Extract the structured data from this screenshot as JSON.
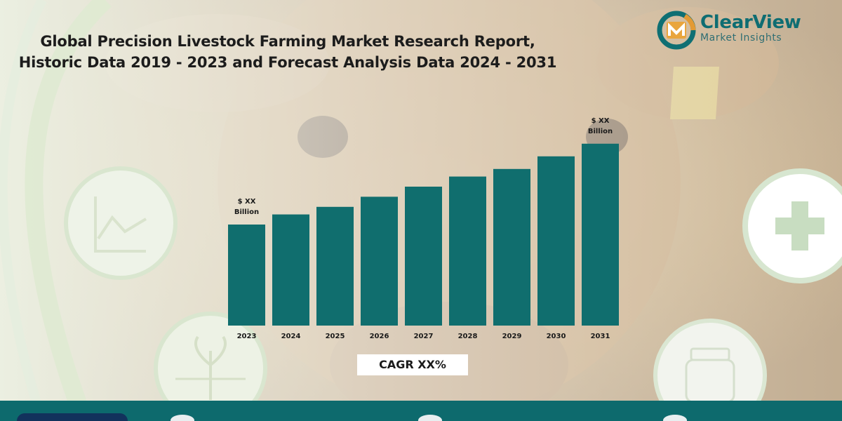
{
  "header": {
    "title_line1": "Global Precision Livestock Farming Market Research Report,",
    "title_line2": "Historic Data 2019 - 2023 and Forecast Analysis Data 2024 - 2031"
  },
  "logo": {
    "name": "ClearView",
    "subtitle": "Market Insights"
  },
  "chart_data": {
    "type": "bar",
    "categories": [
      "2023",
      "2024",
      "2025",
      "2026",
      "2027",
      "2028",
      "2029",
      "2030",
      "2031"
    ],
    "values": [
      0.4,
      0.44,
      0.47,
      0.51,
      0.55,
      0.59,
      0.62,
      0.67,
      0.72
    ],
    "data_labels": [
      {
        "index": 0,
        "line1": "$ XX",
        "line2": "Billion"
      },
      {
        "index": 8,
        "line1": "$ XX",
        "line2": "Billion"
      }
    ],
    "title": "",
    "xlabel": "",
    "ylabel": "",
    "ylim": [
      0,
      1
    ],
    "grid": false,
    "legend": "none",
    "bar_color": "#106e6e"
  },
  "cagr": "CAGR XX%",
  "colors": {
    "accent": "#0d6a6d",
    "footer_pill": "#12325c"
  },
  "icons": [
    "chart-icon",
    "plus-icon",
    "plant-icon",
    "jar-icon",
    "cow-photo"
  ]
}
